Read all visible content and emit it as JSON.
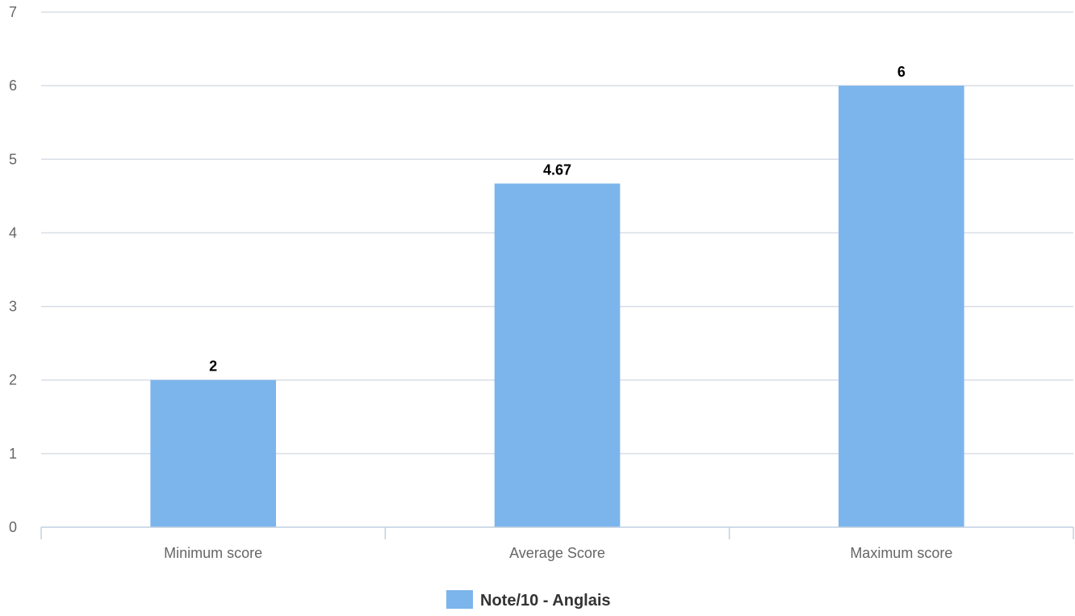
{
  "chart_data": {
    "type": "bar",
    "categories": [
      "Minimum score",
      "Average Score",
      "Maximum score"
    ],
    "series": [
      {
        "name": "Note/10 - Anglais",
        "values": [
          2,
          4.67,
          6
        ],
        "data_labels": [
          "2",
          "4.67",
          "6"
        ],
        "color": "#7cb5ec"
      }
    ],
    "ylim": [
      0,
      7
    ],
    "yticks": [
      "0",
      "1",
      "2",
      "3",
      "4",
      "5",
      "6",
      "7"
    ],
    "grid": true,
    "legend_position": "bottom-center",
    "colors": {
      "grid": "#d8dde6",
      "axis": "#c0d0e0",
      "tick_text": "#666666",
      "data_label": "#000000"
    }
  }
}
